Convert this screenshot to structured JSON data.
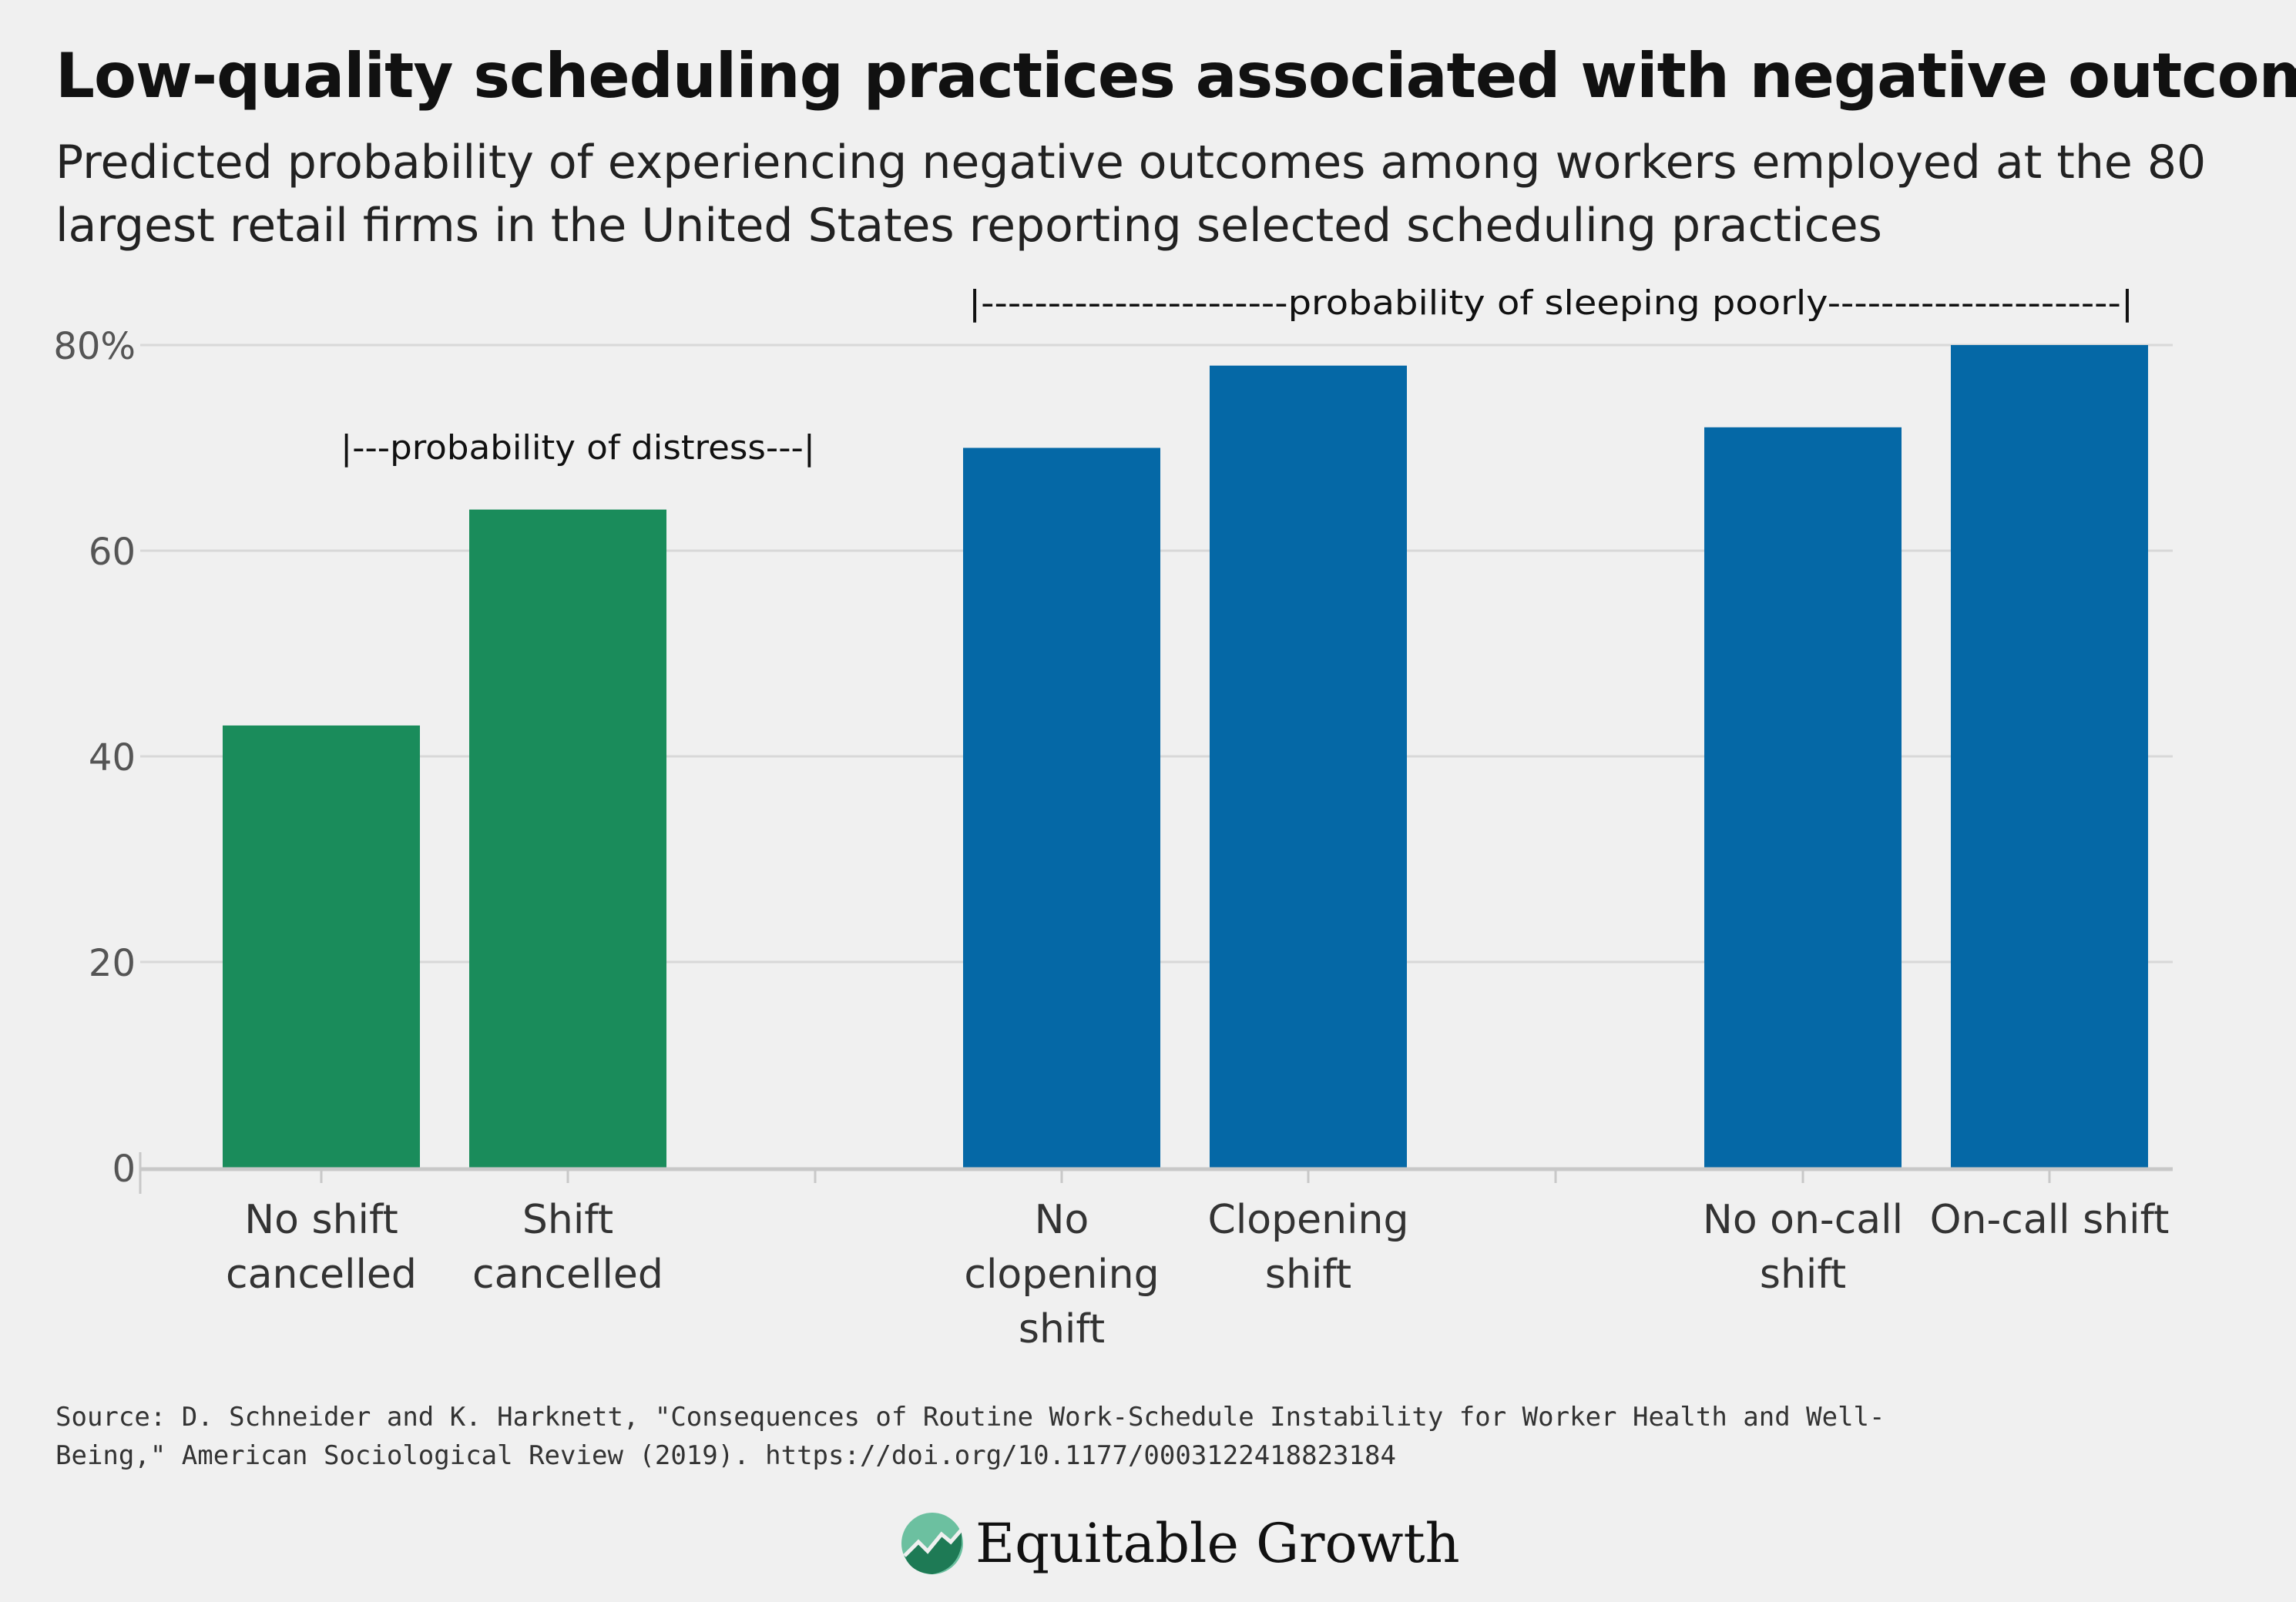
{
  "title": "Low-quality scheduling practices associated with negative outcomes",
  "subtitle": "Predicted probability of experiencing negative outcomes among workers employed at the 80 largest retail firms in the United States reporting selected scheduling practices",
  "source": "Source: D. Schneider and K. Harknett, \"Consequences of Routine Work-Schedule Instability for Worker Health and Well-Being,\" American Sociological Review (2019). https://doi.org/10.1177/0003122418823184",
  "brand": {
    "name": "Equitable Growth",
    "icon": "equitable-growth-logo-icon"
  },
  "colors": {
    "green": "#1a8c5b",
    "blue": "#0568a6",
    "grid": "#d8d8d8",
    "axis": "#c8c8c8",
    "background": "#f0f0f0"
  },
  "chart_data": {
    "type": "bar",
    "ylim": [
      0,
      80
    ],
    "yticks": [
      0,
      20,
      40,
      60,
      80
    ],
    "ytick_labels": [
      "0",
      "20",
      "40",
      "60",
      "80%"
    ],
    "grid": true,
    "categories": [
      [
        "No shift",
        "cancelled"
      ],
      [
        "Shift",
        "cancelled"
      ],
      [
        "No",
        "clopening",
        "shift"
      ],
      [
        "Clopening",
        "shift"
      ],
      [
        "No on-call",
        "shift"
      ],
      [
        "On-call shift"
      ]
    ],
    "values": [
      43,
      64,
      70,
      78,
      72,
      80
    ],
    "bar_colors": [
      "green",
      "green",
      "blue",
      "blue",
      "blue",
      "blue"
    ],
    "annotations": [
      "|---probability of distress---|",
      "|-----------------------probability of sleeping poorly----------------------|"
    ]
  }
}
